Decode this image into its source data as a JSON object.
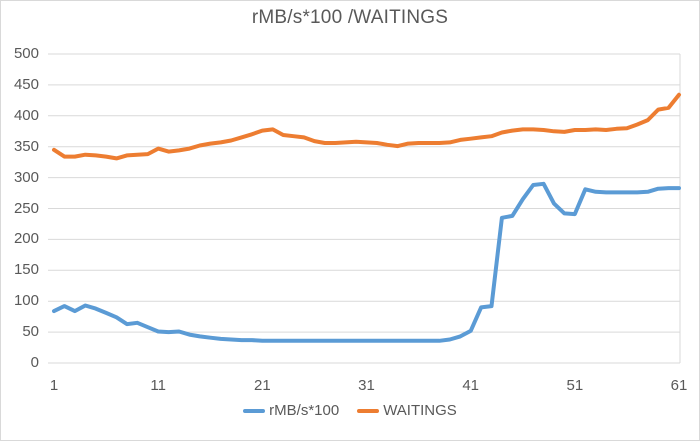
{
  "chart_data": {
    "type": "line",
    "title": "rMB/s*100 /WAITINGS",
    "xlabel": "",
    "ylabel": "",
    "x_count": 61,
    "x_tick_positions": [
      1,
      11,
      21,
      31,
      41,
      51,
      61
    ],
    "x_tick_labels": [
      "1",
      "11",
      "21",
      "31",
      "41",
      "51",
      "61"
    ],
    "y_tick_labels": [
      "0",
      "50",
      "100",
      "150",
      "200",
      "250",
      "300",
      "350",
      "400",
      "450",
      "500"
    ],
    "ylim": [
      0,
      500
    ],
    "xlim": [
      1,
      61
    ],
    "grid": "horizontal",
    "legend_position": "bottom-center",
    "colors": {
      "series_blue": "#5B9BD5",
      "series_orange": "#ED7D31",
      "text": "#595959",
      "gridline": "#D9D9D9",
      "plot_border": "#D9D9D9",
      "background": "#FFFFFF"
    },
    "series": [
      {
        "name": "rMB/s*100",
        "color": "#5B9BD5",
        "values": [
          84,
          92,
          84,
          93,
          88,
          81,
          74,
          63,
          65,
          58,
          51,
          50,
          51,
          46,
          43,
          41,
          39,
          38,
          37,
          37,
          36,
          36,
          36,
          36,
          36,
          36,
          36,
          36,
          36,
          36,
          36,
          36,
          36,
          36,
          36,
          36,
          36,
          36,
          38,
          43,
          52,
          90,
          92,
          235,
          238,
          265,
          288,
          290,
          258,
          242,
          241,
          281,
          277,
          276,
          276,
          276,
          276,
          277,
          282,
          283,
          283
        ]
      },
      {
        "name": "WAITINGS",
        "color": "#ED7D31",
        "values": [
          345,
          334,
          334,
          337,
          336,
          334,
          331,
          336,
          337,
          338,
          347,
          342,
          344,
          347,
          352,
          355,
          357,
          360,
          365,
          370,
          376,
          378,
          369,
          367,
          365,
          359,
          356,
          356,
          357,
          358,
          357,
          356,
          353,
          351,
          355,
          356,
          356,
          356,
          357,
          361,
          363,
          365,
          367,
          373,
          376,
          378,
          378,
          377,
          375,
          374,
          377,
          377,
          378,
          377,
          379,
          380,
          386,
          393,
          410,
          413,
          434
        ]
      }
    ]
  }
}
